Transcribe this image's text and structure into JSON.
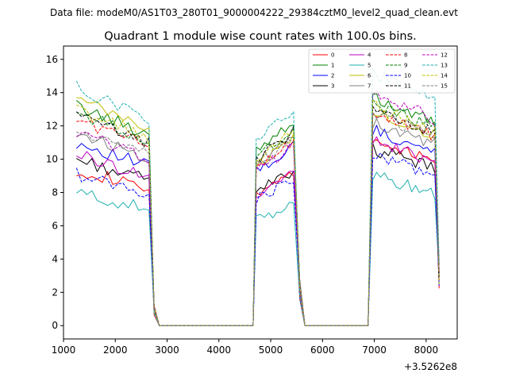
{
  "header": {
    "suptitle": "Data file: modeM0/AS1T03_280T01_9000004222_29384cztM0_level2_quad_clean.evt",
    "title": "Quadrant 1 module wise count rates with 100.0s bins."
  },
  "chart_data": {
    "type": "line",
    "title": "Quadrant 1 module wise count rates with 100.0s bins.",
    "xlabel": "",
    "ylabel": "",
    "x_offset_label": "+3.5262e8",
    "xlim": [
      1000,
      8600
    ],
    "ylim": [
      -0.8,
      16.8
    ],
    "xticks": [
      1000,
      2000,
      3000,
      4000,
      5000,
      6000,
      7000,
      8000
    ],
    "xtick_labels": [
      "1000",
      "2000",
      "3000",
      "4000",
      "5000",
      "6000",
      "7000",
      "8000"
    ],
    "yticks": [
      0,
      2,
      4,
      6,
      8,
      10,
      12,
      14,
      16
    ],
    "ytick_labels": [
      "0",
      "2",
      "4",
      "6",
      "8",
      "10",
      "12",
      "14",
      "16"
    ],
    "segments": [
      {
        "x0": 1250,
        "x1": 2650,
        "drop_x": 2750
      },
      {
        "x0": 4720,
        "x1": 5460,
        "drop_x": 5560,
        "rise_x": 4660
      },
      {
        "x0": 6970,
        "x1": 8250,
        "rise_x": 6880
      }
    ],
    "zero_spans": [
      [
        2850,
        4620
      ],
      [
        5660,
        6830
      ]
    ],
    "series": [
      {
        "name": "0",
        "color": "#ff0000",
        "dash": "solid",
        "levels": [
          9.4,
          8.6,
          11.0
        ]
      },
      {
        "name": "1",
        "color": "#008000",
        "dash": "solid",
        "levels": [
          13.2,
          11.5,
          13.4
        ]
      },
      {
        "name": "2",
        "color": "#0000ff",
        "dash": "solid",
        "levels": [
          11.0,
          10.0,
          11.5
        ]
      },
      {
        "name": "3",
        "color": "#000000",
        "dash": "solid",
        "levels": [
          10.0,
          8.7,
          10.4
        ]
      },
      {
        "name": "4",
        "color": "#bf00bf",
        "dash": "solid",
        "levels": [
          10.3,
          8.6,
          10.9
        ]
      },
      {
        "name": "5",
        "color": "#20b0b0",
        "dash": "solid",
        "levels": [
          8.0,
          6.8,
          8.8
        ]
      },
      {
        "name": "6",
        "color": "#bfbf00",
        "dash": "solid",
        "levels": [
          13.6,
          10.5,
          12.6
        ]
      },
      {
        "name": "7",
        "color": "#808080",
        "dash": "solid",
        "levels": [
          11.6,
          10.6,
          12.0
        ]
      },
      {
        "name": "8",
        "color": "#ff0000",
        "dash": "dashed",
        "levels": [
          12.4,
          10.2,
          12.6
        ]
      },
      {
        "name": "9",
        "color": "#008000",
        "dash": "dashed",
        "levels": [
          12.8,
          11.0,
          13.1
        ]
      },
      {
        "name": "10",
        "color": "#0000ff",
        "dash": "dashed",
        "levels": [
          9.1,
          8.2,
          10.0
        ]
      },
      {
        "name": "11",
        "color": "#000000",
        "dash": "dashed",
        "levels": [
          12.6,
          10.8,
          12.7
        ]
      },
      {
        "name": "12",
        "color": "#bf00bf",
        "dash": "dashed",
        "levels": [
          11.6,
          10.0,
          13.7
        ]
      },
      {
        "name": "13",
        "color": "#20b0b0",
        "dash": "dashed",
        "levels": [
          14.3,
          12.0,
          14.9
        ]
      },
      {
        "name": "14",
        "color": "#bfbf00",
        "dash": "dashed",
        "levels": [
          13.0,
          10.8,
          12.9
        ]
      },
      {
        "name": "15",
        "color": "#808080",
        "dash": "dashed",
        "levels": [
          11.7,
          10.3,
          12.5
        ]
      }
    ],
    "legend": {
      "placement": "top-right",
      "columns": 4
    }
  }
}
